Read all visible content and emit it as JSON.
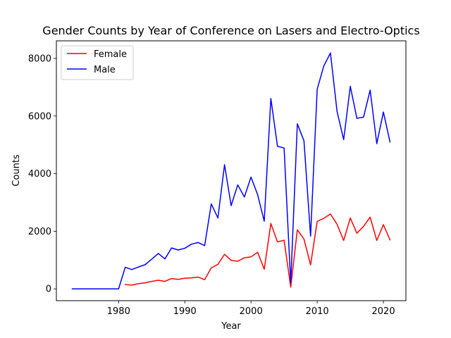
{
  "chart_data": {
    "type": "line",
    "title": "Gender Counts by Year of Conference on Lasers and Electro-Optics",
    "xlabel": "Year",
    "ylabel": "Counts",
    "xlim": [
      1970.6,
      2023.4
    ],
    "ylim": [
      -410,
      8610
    ],
    "xticks": [
      1980,
      1990,
      2000,
      2010,
      2020
    ],
    "yticks": [
      0,
      2000,
      4000,
      6000,
      8000
    ],
    "grid": false,
    "legend_position": "upper-left",
    "series": [
      {
        "name": "Female",
        "color": "#ff0000",
        "x": [
          1981,
          1982,
          1983,
          1984,
          1985,
          1986,
          1987,
          1988,
          1989,
          1990,
          1991,
          1992,
          1993,
          1994,
          1995,
          1996,
          1997,
          1998,
          1999,
          2000,
          2001,
          2002,
          2003,
          2004,
          2005,
          2006,
          2007,
          2008,
          2009,
          2010,
          2011,
          2012,
          2013,
          2014,
          2015,
          2016,
          2017,
          2018,
          2019,
          2020,
          2021
        ],
        "y": [
          150,
          130,
          180,
          210,
          260,
          300,
          260,
          360,
          330,
          370,
          380,
          410,
          320,
          730,
          850,
          1200,
          990,
          960,
          1080,
          1110,
          1270,
          680,
          2270,
          1630,
          1690,
          60,
          2050,
          1730,
          830,
          2340,
          2450,
          2600,
          2240,
          1680,
          2460,
          1930,
          2170,
          2490,
          1680,
          2230,
          1700
        ]
      },
      {
        "name": "Male",
        "color": "#0000ff",
        "x": [
          1973,
          1974,
          1975,
          1976,
          1977,
          1978,
          1979,
          1980,
          1981,
          1982,
          1983,
          1984,
          1985,
          1986,
          1987,
          1988,
          1989,
          1990,
          1991,
          1992,
          1993,
          1994,
          1995,
          1996,
          1997,
          1998,
          1999,
          2000,
          2001,
          2002,
          2003,
          2004,
          2005,
          2006,
          2007,
          2008,
          2009,
          2010,
          2011,
          2012,
          2013,
          2014,
          2015,
          2016,
          2017,
          2018,
          2019,
          2020,
          2021
        ],
        "y": [
          0,
          0,
          0,
          0,
          0,
          0,
          0,
          0,
          750,
          670,
          760,
          840,
          1030,
          1230,
          1040,
          1420,
          1350,
          1410,
          1550,
          1610,
          1500,
          2950,
          2460,
          4310,
          2890,
          3610,
          3190,
          3880,
          3270,
          2350,
          6610,
          4950,
          4890,
          200,
          5730,
          5140,
          1830,
          6930,
          7740,
          8190,
          6160,
          5180,
          7030,
          5920,
          5960,
          6900,
          5040,
          6140,
          5100
        ]
      }
    ]
  }
}
